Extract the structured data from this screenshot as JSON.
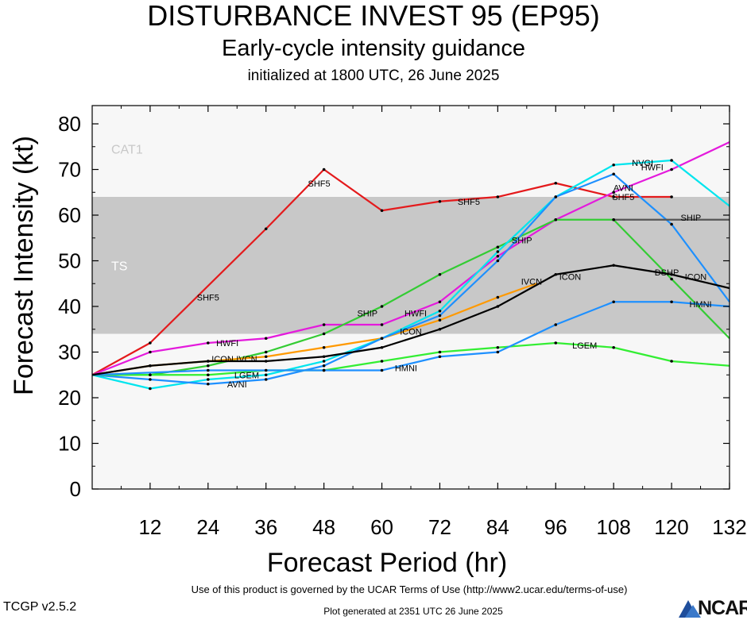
{
  "header": {
    "title": "DISTURBANCE INVEST 95 (EP95)",
    "subtitle": "Early-cycle intensity guidance",
    "initialized": "initialized at 1800 UTC, 26 June 2025"
  },
  "footer": {
    "terms": "Use of this product is governed by the UCAR Terms of Use (http://www2.ucar.edu/terms-of-use)",
    "version": "TCGP v2.5.2",
    "generated": "Plot generated at 2351 UTC   26 June 2025",
    "logo_text": "NCAR"
  },
  "chart_data": {
    "type": "line",
    "xlabel": "Forecast Period (hr)",
    "ylabel": "Forecast Intensity (kt)",
    "xlim": [
      0,
      132
    ],
    "ylim": [
      0,
      84
    ],
    "x_ticks": [
      12,
      24,
      36,
      48,
      60,
      72,
      84,
      96,
      108,
      120,
      132
    ],
    "y_ticks": [
      0,
      10,
      20,
      30,
      40,
      50,
      60,
      70,
      80
    ],
    "grid": false,
    "bands": [
      {
        "label": "TS",
        "from": 34,
        "to": 64,
        "color": "#c8c8c8"
      },
      {
        "label": "CAT1",
        "from": 64,
        "to": 84,
        "color": "#f7f7f7"
      }
    ],
    "series": [
      {
        "name": "SHF5",
        "color": "#e41a1c",
        "x": [
          0,
          12,
          36,
          48,
          60,
          72,
          84,
          96,
          108,
          120
        ],
        "y": [
          25,
          32,
          57,
          70,
          61,
          63,
          64,
          67,
          64,
          64
        ],
        "label_at": [
          [
            24,
            42
          ],
          [
            47,
            67
          ],
          [
            78,
            63
          ],
          [
            110,
            64
          ]
        ]
      },
      {
        "name": "HWFI",
        "color": "#e41adc",
        "x": [
          0,
          12,
          24,
          36,
          48,
          60,
          72,
          84,
          96,
          108,
          120,
          132
        ],
        "y": [
          25,
          30,
          32,
          33,
          36,
          36,
          41,
          51,
          59,
          65,
          70,
          76
        ],
        "label_at": [
          [
            28,
            32
          ],
          [
            67,
            38.5
          ],
          [
            116,
            70.5
          ]
        ]
      },
      {
        "name": "SHIP",
        "color": "#33cc33",
        "x": [
          0,
          12,
          24,
          36,
          48,
          60,
          72,
          84,
          96,
          108,
          120,
          132
        ],
        "y": [
          25,
          25,
          27,
          30,
          34,
          40,
          47,
          53,
          59,
          59,
          46,
          33
        ],
        "label_at": [
          [
            57,
            38.5
          ],
          [
            89,
            54.5
          ]
        ]
      },
      {
        "name": "DSHP",
        "color": "#33cc33",
        "x": [],
        "y": [],
        "label_at": [
          [
            119,
            47.5
          ]
        ]
      },
      {
        "name": "IVCN",
        "color": "#ff9900",
        "x": [
          0,
          12,
          24,
          36,
          48,
          60,
          72,
          84,
          92
        ],
        "y": [
          25,
          27,
          28,
          29,
          31,
          33,
          37,
          42,
          45
        ],
        "label_at": [
          [
            32,
            28.5
          ],
          [
            91,
            45.5
          ]
        ]
      },
      {
        "name": "NVGI",
        "color": "#00e5ee",
        "x": [
          0,
          12,
          24,
          36,
          48,
          60,
          72,
          84,
          96,
          108,
          120,
          132
        ],
        "y": [
          25,
          22,
          24,
          25,
          28,
          33,
          39,
          52,
          64,
          71,
          72,
          62
        ],
        "label_at": [
          [
            114,
            71.5
          ]
        ]
      },
      {
        "name": "AVNI",
        "color": "#1e90ff",
        "x": [
          0,
          12,
          24,
          36,
          48,
          60,
          72,
          84,
          96,
          108,
          120,
          132
        ],
        "y": [
          25,
          24,
          23,
          24,
          27,
          33,
          38,
          50,
          64,
          69,
          58,
          41
        ],
        "label_at": [
          [
            30,
            23
          ],
          [
            110,
            66
          ]
        ]
      },
      {
        "name": "LGEM",
        "color": "#33ee33",
        "x": [
          0,
          12,
          24,
          36,
          48,
          60,
          72,
          84,
          96,
          108,
          120,
          132
        ],
        "y": [
          25,
          25,
          25,
          26,
          26,
          28,
          30,
          31,
          32,
          31,
          28,
          27
        ],
        "label_at": [
          [
            32,
            25
          ],
          [
            102,
            31.5
          ]
        ]
      },
      {
        "name": "HMNI",
        "color": "#1e90ff",
        "x": [
          0,
          24,
          48,
          60,
          72,
          84,
          96,
          108,
          120,
          132
        ],
        "y": [
          25,
          26,
          26,
          26,
          29,
          30,
          36,
          41,
          41,
          40
        ],
        "label_at": [
          [
            65,
            26.5
          ],
          [
            126,
            40.5
          ]
        ]
      },
      {
        "name": "ICON",
        "color": "#000000",
        "x": [
          0,
          12,
          24,
          36,
          48,
          60,
          72,
          84,
          96,
          108,
          120,
          132
        ],
        "y": [
          25,
          27,
          28,
          28,
          29,
          31,
          35,
          40,
          47,
          49,
          47,
          44
        ],
        "label_at": [
          [
            27,
            28.5
          ],
          [
            66,
            34.5
          ],
          [
            99,
            46.5
          ],
          [
            125,
            46.5
          ]
        ]
      },
      {
        "name": "SHIP-const",
        "color": "#555555",
        "x": [
          108,
          132
        ],
        "y": [
          59,
          59
        ],
        "label_at": [
          [
            124,
            59.5
          ]
        ]
      }
    ]
  },
  "colors": {
    "ts_band": "#c8c8c8",
    "cat1_band": "#f7f7f7",
    "plot_bg": "#f7f7f7"
  }
}
